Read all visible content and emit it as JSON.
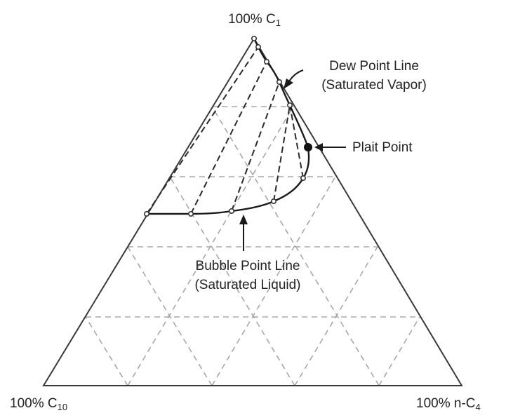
{
  "vertices": {
    "top": {
      "prefix": "100% C",
      "sub": "1"
    },
    "left": {
      "prefix": "100% C",
      "sub": "10"
    },
    "right": {
      "prefix": "100% n-C",
      "sub": "4"
    }
  },
  "annotations": {
    "dew_line_1": "Dew Point Line",
    "dew_line_2": "(Saturated Vapor)",
    "plait_point": "Plait Point",
    "bubble_line_1": "Bubble Point Line",
    "bubble_line_2": "(Saturated Liquid)"
  },
  "colors": {
    "frame": "#3a3a3a",
    "grid": "#a8a8a8",
    "curve": "#1a1a1a",
    "tie_line": "#2a2a2a",
    "text": "#222222"
  }
}
